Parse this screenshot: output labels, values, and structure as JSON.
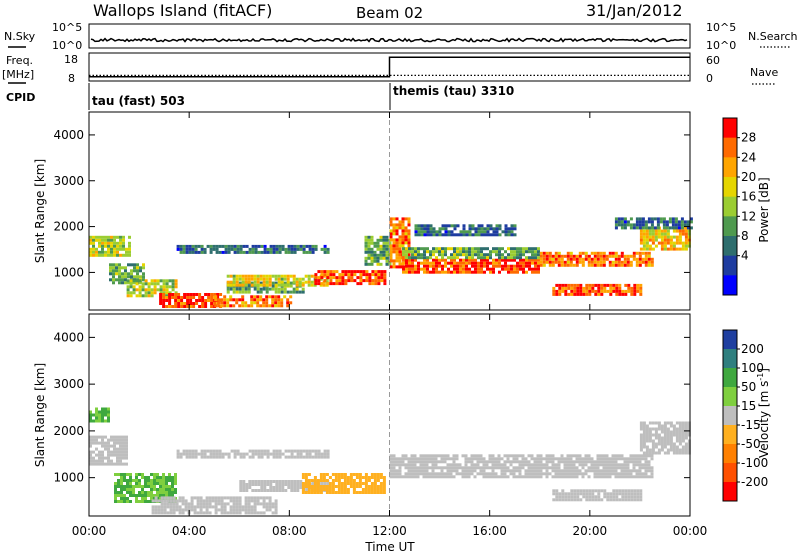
{
  "header": {
    "station": "Wallops Island (fitACF)",
    "beam": "Beam 02",
    "date": "31/Jan/2012"
  },
  "panels": {
    "nsky_label": "N.Sky",
    "nsky_ticks": [
      "10^5",
      "10^0"
    ],
    "nsearch_label": "N.Search",
    "nsearch_ticks": [
      "10^5",
      "10^0"
    ],
    "freq_label": "Freq.",
    "freq_unit": "[MHz]",
    "freq_ticks": [
      "18",
      "8"
    ],
    "nave_label": "Nave",
    "nave_ticks": [
      "60",
      "0"
    ],
    "cpid_label": "CPID",
    "cpid_modes": [
      {
        "label": "tau (fast) 503",
        "start": "00:00"
      },
      {
        "label": "themis (tau) 3310",
        "start": "12:00"
      }
    ]
  },
  "colorbars": {
    "power": {
      "label": "Power [dB]",
      "ticks": [
        "28",
        "24",
        "20",
        "16",
        "12",
        "8",
        "4"
      ],
      "colors": [
        "#ff0000",
        "#ff6a00",
        "#ffa500",
        "#e5d500",
        "#9bcd32",
        "#4f9a4f",
        "#2e6e6e",
        "#1e3ca0",
        "#0000ff"
      ]
    },
    "velocity": {
      "label": "Velocity [m s",
      "label_sup": "-1",
      "label_end": "]",
      "ticks": [
        "200",
        "100",
        "50",
        "15",
        "-15",
        "-50",
        "-100",
        "-200"
      ],
      "colors": [
        "#1f3fa0",
        "#2f7f7f",
        "#3fa83f",
        "#7fcf3f",
        "#bebebe",
        "#ffb020",
        "#ff8000",
        "#ff5000",
        "#ff0000"
      ]
    }
  },
  "chart_data": {
    "type": "heatmap",
    "x_axis": {
      "label": "Time UT",
      "ticks": [
        "00:00",
        "04:00",
        "08:00",
        "12:00",
        "16:00",
        "20:00",
        "00:00"
      ],
      "range_hours": [
        0,
        24
      ]
    },
    "y_axis": {
      "label": "Slant Range [km]",
      "ticks": [
        1000,
        2000,
        3000,
        4000
      ],
      "range_km": [
        180,
        4500
      ]
    },
    "mode_change_hour": 12,
    "power_bands": [
      {
        "t0": 0.0,
        "t1": 1.6,
        "r0": 1400,
        "r1": 1800,
        "db": 16
      },
      {
        "t0": 0.8,
        "t1": 2.2,
        "r0": 800,
        "r1": 1200,
        "db": 12
      },
      {
        "t0": 1.5,
        "t1": 3.5,
        "r0": 500,
        "r1": 850,
        "db": 16
      },
      {
        "t0": 2.8,
        "t1": 5.2,
        "r0": 250,
        "r1": 550,
        "db": 26
      },
      {
        "t0": 5.0,
        "t1": 8.0,
        "r0": 300,
        "r1": 500,
        "db": 24
      },
      {
        "t0": 3.5,
        "t1": 9.5,
        "r0": 1450,
        "r1": 1600,
        "db": 8
      },
      {
        "t0": 5.5,
        "t1": 8.5,
        "r0": 550,
        "r1": 800,
        "db": 12
      },
      {
        "t0": 5.5,
        "t1": 9.5,
        "r0": 750,
        "r1": 950,
        "db": 18
      },
      {
        "t0": 9.0,
        "t1": 11.8,
        "r0": 750,
        "r1": 1050,
        "db": 26
      },
      {
        "t0": 11.0,
        "t1": 12.0,
        "r0": 1200,
        "r1": 1800,
        "db": 12
      },
      {
        "t0": 12.0,
        "t1": 12.8,
        "r0": 1100,
        "r1": 2200,
        "db": 24
      },
      {
        "t0": 12.5,
        "t1": 18.0,
        "r0": 1000,
        "r1": 1300,
        "db": 26
      },
      {
        "t0": 12.5,
        "t1": 18.0,
        "r0": 1300,
        "r1": 1550,
        "db": 12
      },
      {
        "t0": 13.0,
        "t1": 17.0,
        "r0": 1800,
        "r1": 2050,
        "db": 8
      },
      {
        "t0": 18.0,
        "t1": 22.5,
        "r0": 1150,
        "r1": 1450,
        "db": 24
      },
      {
        "t0": 18.5,
        "t1": 22.0,
        "r0": 550,
        "r1": 750,
        "db": 26
      },
      {
        "t0": 22.0,
        "t1": 24.0,
        "r0": 1500,
        "r1": 2000,
        "db": 20
      },
      {
        "t0": 21.0,
        "t1": 24.0,
        "r0": 2000,
        "r1": 2200,
        "db": 8
      }
    ],
    "velocity_bands": [
      {
        "t0": 0.0,
        "t1": 1.5,
        "r0": 1300,
        "r1": 1900,
        "v": 0
      },
      {
        "t0": 0.0,
        "t1": 0.8,
        "r0": 2200,
        "r1": 2500,
        "v": 30
      },
      {
        "t0": 1.0,
        "t1": 3.5,
        "r0": 500,
        "r1": 1100,
        "v": 30
      },
      {
        "t0": 2.5,
        "t1": 7.5,
        "r0": 250,
        "r1": 600,
        "v": 0
      },
      {
        "t0": 3.5,
        "t1": 9.5,
        "r0": 1450,
        "r1": 1600,
        "v": 0
      },
      {
        "t0": 6.0,
        "t1": 9.5,
        "r0": 750,
        "r1": 950,
        "v": 0
      },
      {
        "t0": 8.5,
        "t1": 11.8,
        "r0": 700,
        "r1": 1100,
        "v": -40
      },
      {
        "t0": 12.0,
        "t1": 22.5,
        "r0": 1000,
        "r1": 1500,
        "v": 0
      },
      {
        "t0": 18.5,
        "t1": 22.0,
        "r0": 550,
        "r1": 750,
        "v": 0
      },
      {
        "t0": 22.0,
        "t1": 24.0,
        "r0": 1500,
        "r1": 2200,
        "v": 0
      }
    ],
    "nsky_level": 0.55,
    "nsearch_level": 0.55,
    "freq_level_before": 0.15,
    "freq_level_after": 0.85,
    "nave_level": 0.2
  }
}
